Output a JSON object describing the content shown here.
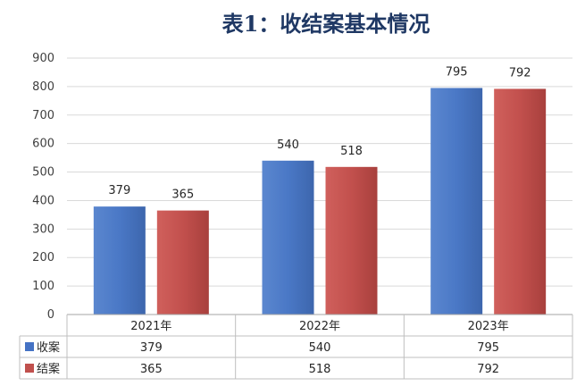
{
  "chart_data": {
    "type": "bar",
    "title": "表1：收结案基本情况",
    "categories": [
      "2021年",
      "2022年",
      "2023年"
    ],
    "series": [
      {
        "name": "收案",
        "values": [
          379,
          540,
          795
        ],
        "color": "#4472c4"
      },
      {
        "name": "结案",
        "values": [
          365,
          518,
          792
        ],
        "color": "#c0504d"
      }
    ],
    "ylim": [
      0,
      900
    ],
    "yticks": [
      0,
      100,
      200,
      300,
      400,
      500,
      600,
      700,
      800,
      900
    ],
    "grid": true,
    "data_labels": true,
    "data_table": true,
    "legend": "in-data-table"
  }
}
